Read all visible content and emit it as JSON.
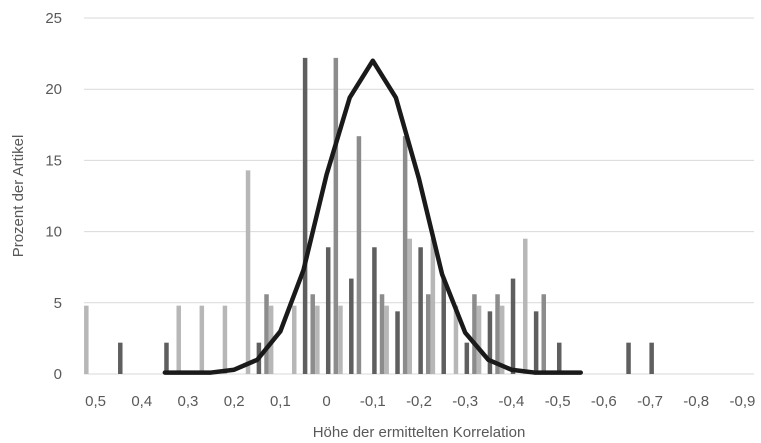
{
  "chart_data": {
    "type": "bar",
    "xlabel": "Höhe der ermittelten Korrelation",
    "ylabel": "Prozent der Artikel",
    "ylim": [
      0,
      25
    ],
    "yticks": [
      "0",
      "5",
      "10",
      "15",
      "20",
      "25"
    ],
    "grid": true,
    "legend": "none",
    "categories": [
      "0,5",
      "0,45",
      "0,4",
      "0,35",
      "0,3",
      "0,25",
      "0,2",
      "0,15",
      "0,1",
      "0,05",
      "0",
      "-0,05",
      "-0,1",
      "-0,15",
      "-0,2",
      "-0,25",
      "-0,3",
      "-0,35",
      "-0,4",
      "-0,45",
      "-0,5",
      "-0,55",
      "-0,6",
      "-0,65",
      "-0,7",
      "-0,75",
      "-0,8",
      "-0,85",
      "-0,9"
    ],
    "xticks": [
      {
        "index": 0,
        "label": "0,5"
      },
      {
        "index": 2,
        "label": "0,4"
      },
      {
        "index": 4,
        "label": "0,3"
      },
      {
        "index": 6,
        "label": "0,2"
      },
      {
        "index": 8,
        "label": "0,1"
      },
      {
        "index": 10,
        "label": "0"
      },
      {
        "index": 12,
        "label": "-0,1"
      },
      {
        "index": 14,
        "label": "-0,2"
      },
      {
        "index": 16,
        "label": "-0,3"
      },
      {
        "index": 18,
        "label": "-0,4"
      },
      {
        "index": 20,
        "label": "-0,5"
      },
      {
        "index": 22,
        "label": "-0,6"
      },
      {
        "index": 24,
        "label": "-0,7"
      },
      {
        "index": 26,
        "label": "-0,8"
      },
      {
        "index": 28,
        "label": "-0,9"
      }
    ],
    "series": [
      {
        "type": "bar",
        "color": "#b7b7b7",
        "values": [
          4.8,
          0,
          0,
          0,
          4.8,
          4.8,
          4.8,
          14.3,
          4.8,
          4.8,
          4.8,
          4.8,
          0,
          4.8,
          9.5,
          9.5,
          4.8,
          4.8,
          4.8,
          9.5,
          0,
          0,
          0,
          0,
          0,
          0,
          0,
          0,
          0
        ]
      },
      {
        "type": "bar",
        "color": "#5f5f5f",
        "values": [
          0,
          2.2,
          0,
          2.2,
          0,
          0,
          0,
          2.2,
          0,
          22.2,
          8.9,
          6.7,
          8.9,
          4.4,
          8.9,
          6.7,
          2.2,
          4.4,
          6.7,
          4.4,
          2.2,
          0,
          0,
          2.2,
          2.2,
          0,
          0,
          0,
          0
        ]
      },
      {
        "type": "bar",
        "color": "#8c8c8c",
        "values": [
          0,
          0,
          0,
          0,
          0,
          0,
          0,
          5.6,
          0,
          5.6,
          22.2,
          16.7,
          5.6,
          16.7,
          5.6,
          0,
          5.6,
          5.6,
          0,
          5.6,
          0,
          0,
          0,
          0,
          0,
          0,
          0,
          0,
          0
        ]
      },
      {
        "type": "line",
        "color": "#1a1a1a",
        "values": [
          null,
          null,
          null,
          0.1,
          0.1,
          0.1,
          0.3,
          1.0,
          3.0,
          7.3,
          14.0,
          19.4,
          22.0,
          19.4,
          13.7,
          7.0,
          2.9,
          1.0,
          0.3,
          0.1,
          0.1,
          0.1,
          null,
          null,
          null,
          null,
          null,
          null,
          null
        ]
      }
    ]
  }
}
